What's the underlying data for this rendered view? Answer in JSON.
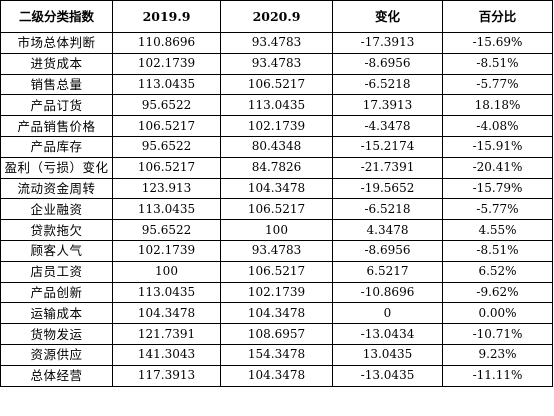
{
  "table": {
    "headers": [
      "二级分类指数",
      "2019.9",
      "2020.9",
      "变化",
      "百分比"
    ],
    "rows": [
      [
        "市场总体判断",
        "110.8696",
        "93.4783",
        "-17.3913",
        "-15.69%"
      ],
      [
        "进货成本",
        "102.1739",
        "93.4783",
        "-8.6956",
        "-8.51%"
      ],
      [
        "销售总量",
        "113.0435",
        "106.5217",
        "-6.5218",
        "-5.77%"
      ],
      [
        "产品订货",
        "95.6522",
        "113.0435",
        "17.3913",
        "18.18%"
      ],
      [
        "产品销售价格",
        "106.5217",
        "102.1739",
        "-4.3478",
        "-4.08%"
      ],
      [
        "产品库存",
        "95.6522",
        "80.4348",
        "-15.2174",
        "-15.91%"
      ],
      [
        "盈利（亏损）变化",
        "106.5217",
        "84.7826",
        "-21.7391",
        "-20.41%"
      ],
      [
        "流动资金周转",
        "123.913",
        "104.3478",
        "-19.5652",
        "-15.79%"
      ],
      [
        "企业融资",
        "113.0435",
        "106.5217",
        "-6.5218",
        "-5.77%"
      ],
      [
        "贷款拖欠",
        "95.6522",
        "100",
        "4.3478",
        "4.55%"
      ],
      [
        "顾客人气",
        "102.1739",
        "93.4783",
        "-8.6956",
        "-8.51%"
      ],
      [
        "店员工资",
        "100",
        "106.5217",
        "6.5217",
        "6.52%"
      ],
      [
        "产品创新",
        "113.0435",
        "102.1739",
        "-10.8696",
        "-9.62%"
      ],
      [
        "运输成本",
        "104.3478",
        "104.3478",
        "0",
        "0.00%"
      ],
      [
        "货物发运",
        "121.7391",
        "108.6957",
        "-13.0434",
        "-10.71%"
      ],
      [
        "资源供应",
        "141.3043",
        "154.3478",
        "13.0435",
        "9.23%"
      ],
      [
        "总体经营",
        "117.3913",
        "104.3478",
        "-13.0435",
        "-11.11%"
      ]
    ]
  }
}
